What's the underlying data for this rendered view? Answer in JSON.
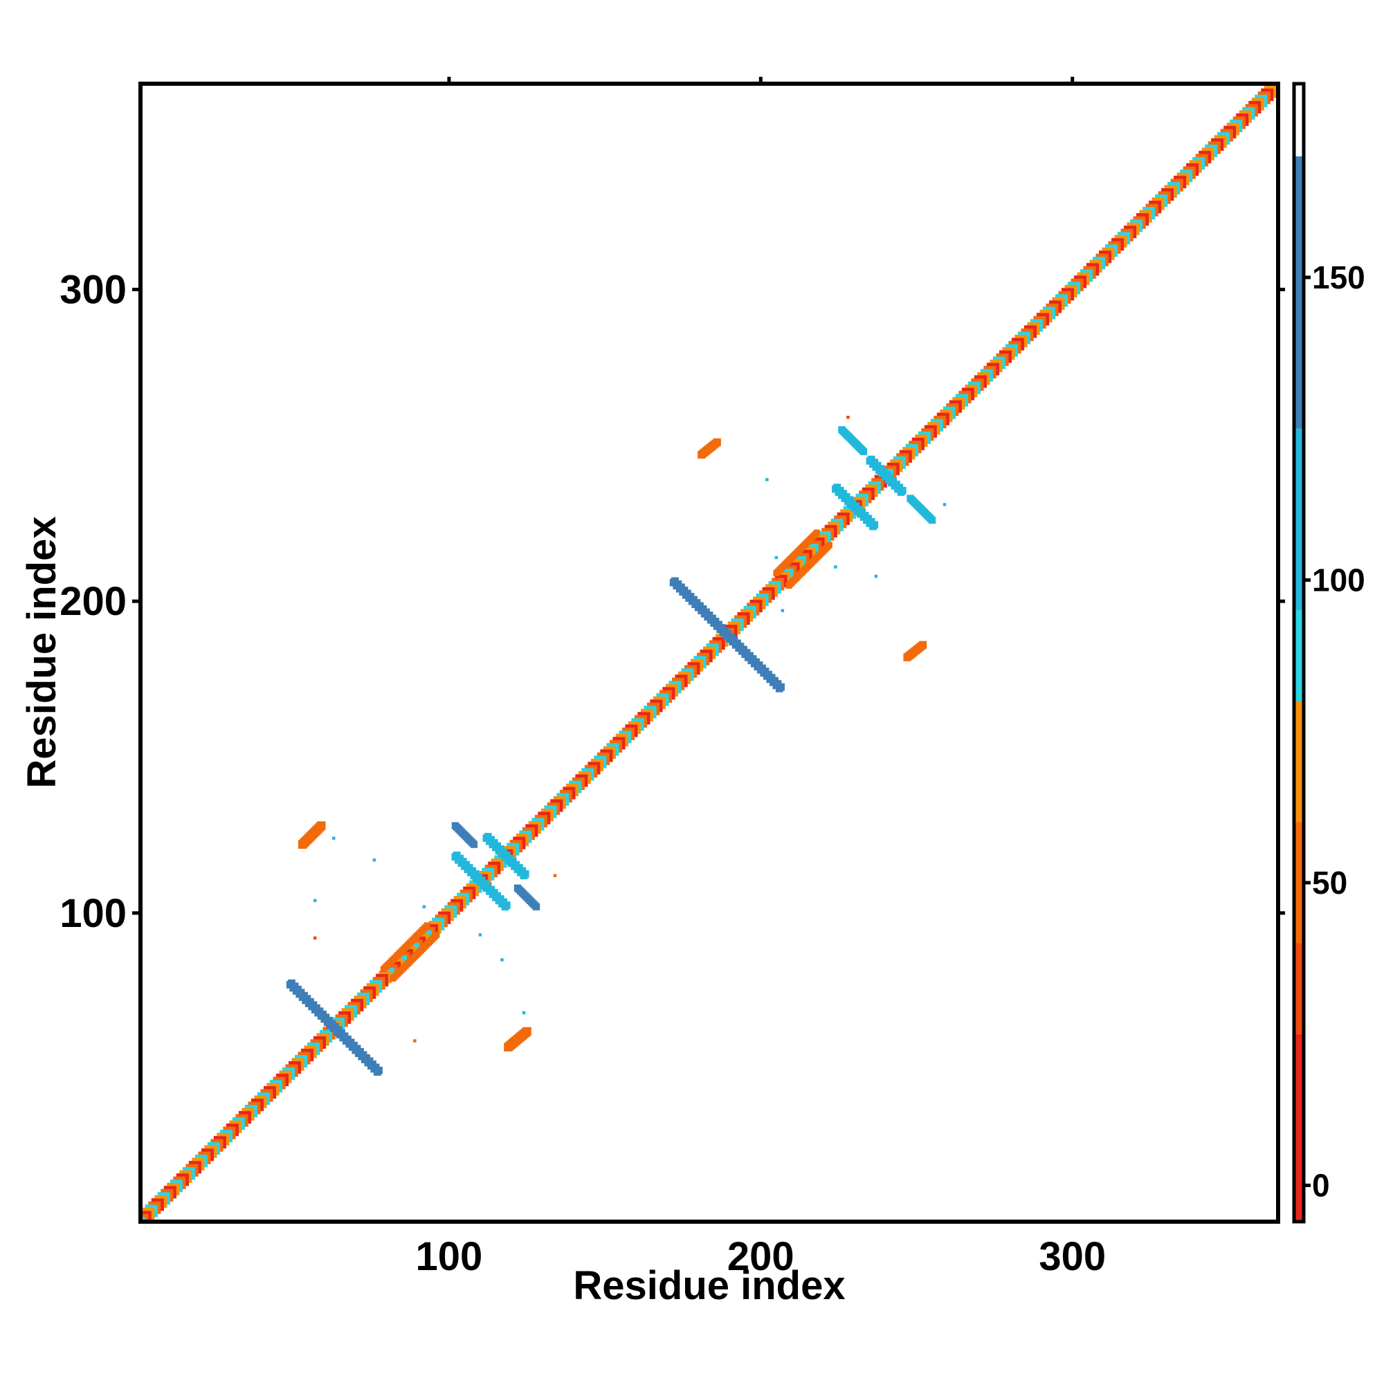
{
  "chart_data": {
    "type": "heatmap",
    "title": "",
    "xlabel": "Residue index",
    "ylabel": "Residue index",
    "xlim": [
      1,
      366
    ],
    "ylim": [
      1,
      366
    ],
    "x_ticks": [
      100,
      200,
      300
    ],
    "y_ticks": [
      100,
      200,
      300
    ],
    "x_tick_labels": [
      "100",
      "200",
      "300"
    ],
    "y_tick_labels": [
      "100",
      "200",
      "300"
    ],
    "grid": false,
    "legend": "none",
    "colorbar": {
      "placement": "right",
      "range": [
        -6,
        182
      ],
      "ticks": [
        0,
        50,
        100,
        150
      ],
      "tick_labels": [
        "0",
        "50",
        "100",
        "150"
      ],
      "stops": [
        {
          "from": -6,
          "to": 25,
          "color": "#e8261a"
        },
        {
          "from": 25,
          "to": 40,
          "color": "#f04a10"
        },
        {
          "from": 40,
          "to": 60,
          "color": "#f26a0a"
        },
        {
          "from": 60,
          "to": 80,
          "color": "#f5920a"
        },
        {
          "from": 80,
          "to": 95,
          "color": "#2ad4e4"
        },
        {
          "from": 95,
          "to": 125,
          "color": "#22b8dc"
        },
        {
          "from": 125,
          "to": 170,
          "color": "#3f7fb8"
        },
        {
          "from": 170,
          "to": 182,
          "color": "#ffffff"
        }
      ]
    },
    "diagonal_band": {
      "from": 1,
      "to": 366,
      "half_width_residues": [
        0,
        1,
        2,
        3
      ],
      "colors": [
        "#e8261a",
        "#f5920a",
        "#2ad4e4",
        "#f26a0a"
      ]
    },
    "off_diagonal_features": [
      {
        "kind": "antiparallel",
        "center": [
          63,
          63
        ],
        "length": 14,
        "value": 140,
        "width": 2.4
      },
      {
        "kind": "antiparallel",
        "center": [
          110,
          110
        ],
        "length": 8,
        "value": 105,
        "width": 2.4
      },
      {
        "kind": "antiparallel",
        "center": [
          118,
          118
        ],
        "length": 6,
        "value": 105,
        "width": 2.4
      },
      {
        "kind": "antiparallel",
        "center": [
          189,
          189
        ],
        "length": 17,
        "value": 140,
        "width": 2.4
      },
      {
        "kind": "antiparallel",
        "center": [
          230,
          230
        ],
        "length": 6,
        "value": 105,
        "width": 2.4
      },
      {
        "kind": "antiparallel",
        "center": [
          240,
          240
        ],
        "length": 5,
        "value": 105,
        "width": 2.4
      },
      {
        "kind": "parallel",
        "start": [
          79,
          82
        ],
        "end": [
          93,
          96
        ],
        "value": 55,
        "width": 2.0
      },
      {
        "kind": "parallel",
        "start": [
          82,
          79
        ],
        "end": [
          96,
          93
        ],
        "value": 55,
        "width": 2.0
      },
      {
        "kind": "parallel",
        "start": [
          205,
          209
        ],
        "end": [
          218,
          222
        ],
        "value": 55,
        "width": 2.0
      },
      {
        "kind": "parallel",
        "start": [
          209,
          205
        ],
        "end": [
          222,
          218
        ],
        "value": 55,
        "width": 2.0
      },
      {
        "kind": "segment",
        "start": [
          102,
          128
        ],
        "end": [
          108,
          122
        ],
        "value": 140,
        "width": 2.3
      },
      {
        "kind": "segment",
        "start": [
          122,
          108
        ],
        "end": [
          128,
          102
        ],
        "value": 140,
        "width": 2.3
      },
      {
        "kind": "segment",
        "start": [
          226,
          255
        ],
        "end": [
          233,
          248
        ],
        "value": 105,
        "width": 2.3
      },
      {
        "kind": "segment",
        "start": [
          248,
          233
        ],
        "end": [
          255,
          226
        ],
        "value": 105,
        "width": 2.3
      },
      {
        "kind": "segment",
        "start": [
          53,
          122
        ],
        "end": [
          59,
          128
        ],
        "value": 45,
        "width": 2.8
      },
      {
        "kind": "segment",
        "start": [
          119,
          57
        ],
        "end": [
          125,
          62
        ],
        "value": 45,
        "width": 2.8
      },
      {
        "kind": "segment",
        "start": [
          181,
          247
        ],
        "end": [
          186,
          251
        ],
        "value": 40,
        "width": 2.5
      },
      {
        "kind": "segment",
        "start": [
          247,
          182
        ],
        "end": [
          252,
          186
        ],
        "value": 40,
        "width": 2.5
      }
    ],
    "scatter_points": [
      {
        "x": 63,
        "y": 124,
        "value": 100
      },
      {
        "x": 57,
        "y": 104,
        "value": 100
      },
      {
        "x": 76,
        "y": 117,
        "value": 100
      },
      {
        "x": 92,
        "y": 102,
        "value": 100
      },
      {
        "x": 57,
        "y": 92,
        "value": 25
      },
      {
        "x": 110,
        "y": 93,
        "value": 100
      },
      {
        "x": 117,
        "y": 85,
        "value": 100
      },
      {
        "x": 124,
        "y": 68,
        "value": 100
      },
      {
        "x": 134,
        "y": 112,
        "value": 50
      },
      {
        "x": 89,
        "y": 59,
        "value": 50
      },
      {
        "x": 205,
        "y": 214,
        "value": 100
      },
      {
        "x": 224,
        "y": 211,
        "value": 100
      },
      {
        "x": 207,
        "y": 197,
        "value": 100
      },
      {
        "x": 237,
        "y": 208,
        "value": 100
      },
      {
        "x": 228,
        "y": 259,
        "value": 25
      },
      {
        "x": 259,
        "y": 231,
        "value": 100
      },
      {
        "x": 202,
        "y": 239,
        "value": 100
      }
    ]
  }
}
